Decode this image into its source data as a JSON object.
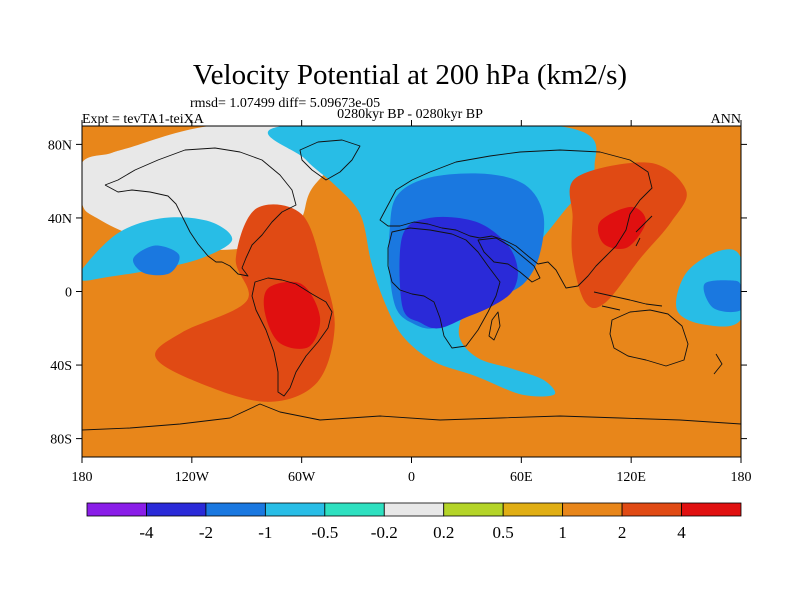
{
  "chart_data": {
    "type": "heatmap",
    "title": "Velocity Potential at 200 hPa (km2/s)",
    "stats_line": "rmsd= 1.07499 diff= 5.09673e-05",
    "left_label": "Expt = tevTA1-teiXA",
    "center_label": "0280kyr BP - 0280kyr BP",
    "right_label": "ANN",
    "x_axis": {
      "range": [
        -180,
        180
      ],
      "ticks": [
        -180,
        -120,
        -60,
        0,
        60,
        120,
        180
      ],
      "tick_labels": [
        "180",
        "120W",
        "60W",
        "0",
        "60E",
        "120E",
        "180"
      ]
    },
    "y_axis": {
      "range": [
        -90,
        90
      ],
      "ticks": [
        80,
        40,
        0,
        -40,
        -80
      ],
      "tick_labels": [
        "80N",
        "40N",
        "0",
        "40S",
        "80S"
      ]
    },
    "colorbar": {
      "levels": [
        "-4",
        "-2",
        "-1",
        "-0.5",
        "-0.2",
        "0.2",
        "0.5",
        "1",
        "2",
        "4"
      ],
      "colors": [
        "#8a1ee8",
        "#2a2ad8",
        "#1a78e0",
        "#28bde6",
        "#2ee0c0",
        "#e8e8e8",
        "#b4d428",
        "#e0ae14",
        "#e8861a",
        "#e04a14",
        "#e01010"
      ]
    },
    "field_regions": [
      {
        "name": "background",
        "band": 8,
        "lon_lat": [
          [
            -180,
            90
          ],
          [
            180,
            90
          ],
          [
            180,
            -90
          ],
          [
            -180,
            -90
          ]
        ]
      },
      {
        "name": "arctic-north-atlantic-positive-light",
        "band": 5,
        "lon_lat": [
          [
            -155,
            78
          ],
          [
            -110,
            90
          ],
          [
            -50,
            90
          ],
          [
            -40,
            75
          ],
          [
            -55,
            55
          ],
          [
            -60,
            40
          ],
          [
            -70,
            30
          ],
          [
            -88,
            24
          ],
          [
            -115,
            23
          ],
          [
            -150,
            30
          ],
          [
            -172,
            40
          ],
          [
            -180,
            48
          ],
          [
            -180,
            70
          ],
          [
            -165,
            75
          ]
        ]
      },
      {
        "name": "atlantic-africa-negative-tongue",
        "band": 3,
        "lon_lat": [
          [
            -70,
            90
          ],
          [
            80,
            90
          ],
          [
            100,
            68
          ],
          [
            82,
            42
          ],
          [
            58,
            14
          ],
          [
            40,
            2
          ],
          [
            30,
            -8
          ],
          [
            26,
            -24
          ],
          [
            36,
            -36
          ],
          [
            55,
            -42
          ],
          [
            72,
            -48
          ],
          [
            78,
            -56
          ],
          [
            60,
            -56
          ],
          [
            35,
            -46
          ],
          [
            12,
            -38
          ],
          [
            -5,
            -24
          ],
          [
            -15,
            -5
          ],
          [
            -22,
            16
          ],
          [
            -28,
            42
          ],
          [
            -42,
            58
          ],
          [
            -58,
            72
          ]
        ]
      },
      {
        "name": "eurasia-africa-negative-core",
        "band": 2,
        "lon_lat": [
          [
            -8,
            52
          ],
          [
            10,
            62
          ],
          [
            40,
            64
          ],
          [
            62,
            58
          ],
          [
            72,
            42
          ],
          [
            70,
            20
          ],
          [
            62,
            5
          ],
          [
            50,
            -2
          ],
          [
            38,
            -5
          ],
          [
            28,
            -8
          ],
          [
            22,
            -14
          ],
          [
            12,
            -20
          ],
          [
            2,
            -18
          ],
          [
            -8,
            -10
          ],
          [
            -12,
            10
          ],
          [
            -12,
            32
          ]
        ]
      },
      {
        "name": "africa-negative-minimum",
        "band": 1,
        "lon_lat": [
          [
            -5,
            30
          ],
          [
            10,
            40
          ],
          [
            35,
            38
          ],
          [
            52,
            26
          ],
          [
            58,
            12
          ],
          [
            55,
            0
          ],
          [
            44,
            -8
          ],
          [
            30,
            -14
          ],
          [
            15,
            -20
          ],
          [
            5,
            -17
          ],
          [
            -5,
            -8
          ]
        ]
      },
      {
        "name": "east-pacific-negative-tongue",
        "band": 3,
        "lon_lat": [
          [
            -180,
            12
          ],
          [
            -160,
            32
          ],
          [
            -135,
            40
          ],
          [
            -110,
            38
          ],
          [
            -98,
            28
          ],
          [
            -115,
            18
          ],
          [
            -140,
            12
          ],
          [
            -165,
            8
          ],
          [
            -180,
            6
          ]
        ]
      },
      {
        "name": "east-pacific-negative-core",
        "band": 2,
        "lon_lat": [
          [
            -152,
            18
          ],
          [
            -140,
            25
          ],
          [
            -127,
            20
          ],
          [
            -132,
            10
          ],
          [
            -146,
            10
          ]
        ]
      },
      {
        "name": "west-pacific-negative-tongue",
        "band": 3,
        "lon_lat": [
          [
            150,
            10
          ],
          [
            168,
            22
          ],
          [
            180,
            18
          ],
          [
            180,
            -15
          ],
          [
            160,
            -18
          ],
          [
            145,
            -10
          ]
        ]
      },
      {
        "name": "west-pacific-negative-core",
        "band": 2,
        "lon_lat": [
          [
            160,
            4
          ],
          [
            175,
            6
          ],
          [
            180,
            3
          ],
          [
            180,
            -10
          ],
          [
            165,
            -9
          ]
        ]
      },
      {
        "name": "south-america-positive-outer",
        "band": 9,
        "lon_lat": [
          [
            -85,
            45
          ],
          [
            -60,
            42
          ],
          [
            -48,
            10
          ],
          [
            -42,
            -20
          ],
          [
            -52,
            -50
          ],
          [
            -80,
            -60
          ],
          [
            -120,
            -48
          ],
          [
            -140,
            -35
          ],
          [
            -125,
            -22
          ],
          [
            -90,
            -5
          ],
          [
            -96,
            18
          ]
        ]
      },
      {
        "name": "south-america-positive-core",
        "band": 10,
        "lon_lat": [
          [
            -78,
            2
          ],
          [
            -60,
            4
          ],
          [
            -50,
            -14
          ],
          [
            -56,
            -30
          ],
          [
            -72,
            -28
          ],
          [
            -80,
            -12
          ]
        ]
      },
      {
        "name": "asia-pacific-positive-outer",
        "band": 9,
        "lon_lat": [
          [
            90,
            62
          ],
          [
            130,
            70
          ],
          [
            150,
            55
          ],
          [
            142,
            38
          ],
          [
            125,
            18
          ],
          [
            106,
            -6
          ],
          [
            95,
            -6
          ],
          [
            88,
            18
          ],
          [
            88,
            40
          ]
        ]
      },
      {
        "name": "asia-pacific-positive-core",
        "band": 10,
        "lon_lat": [
          [
            103,
            38
          ],
          [
            120,
            46
          ],
          [
            128,
            38
          ],
          [
            118,
            24
          ],
          [
            105,
            26
          ]
        ]
      }
    ]
  }
}
